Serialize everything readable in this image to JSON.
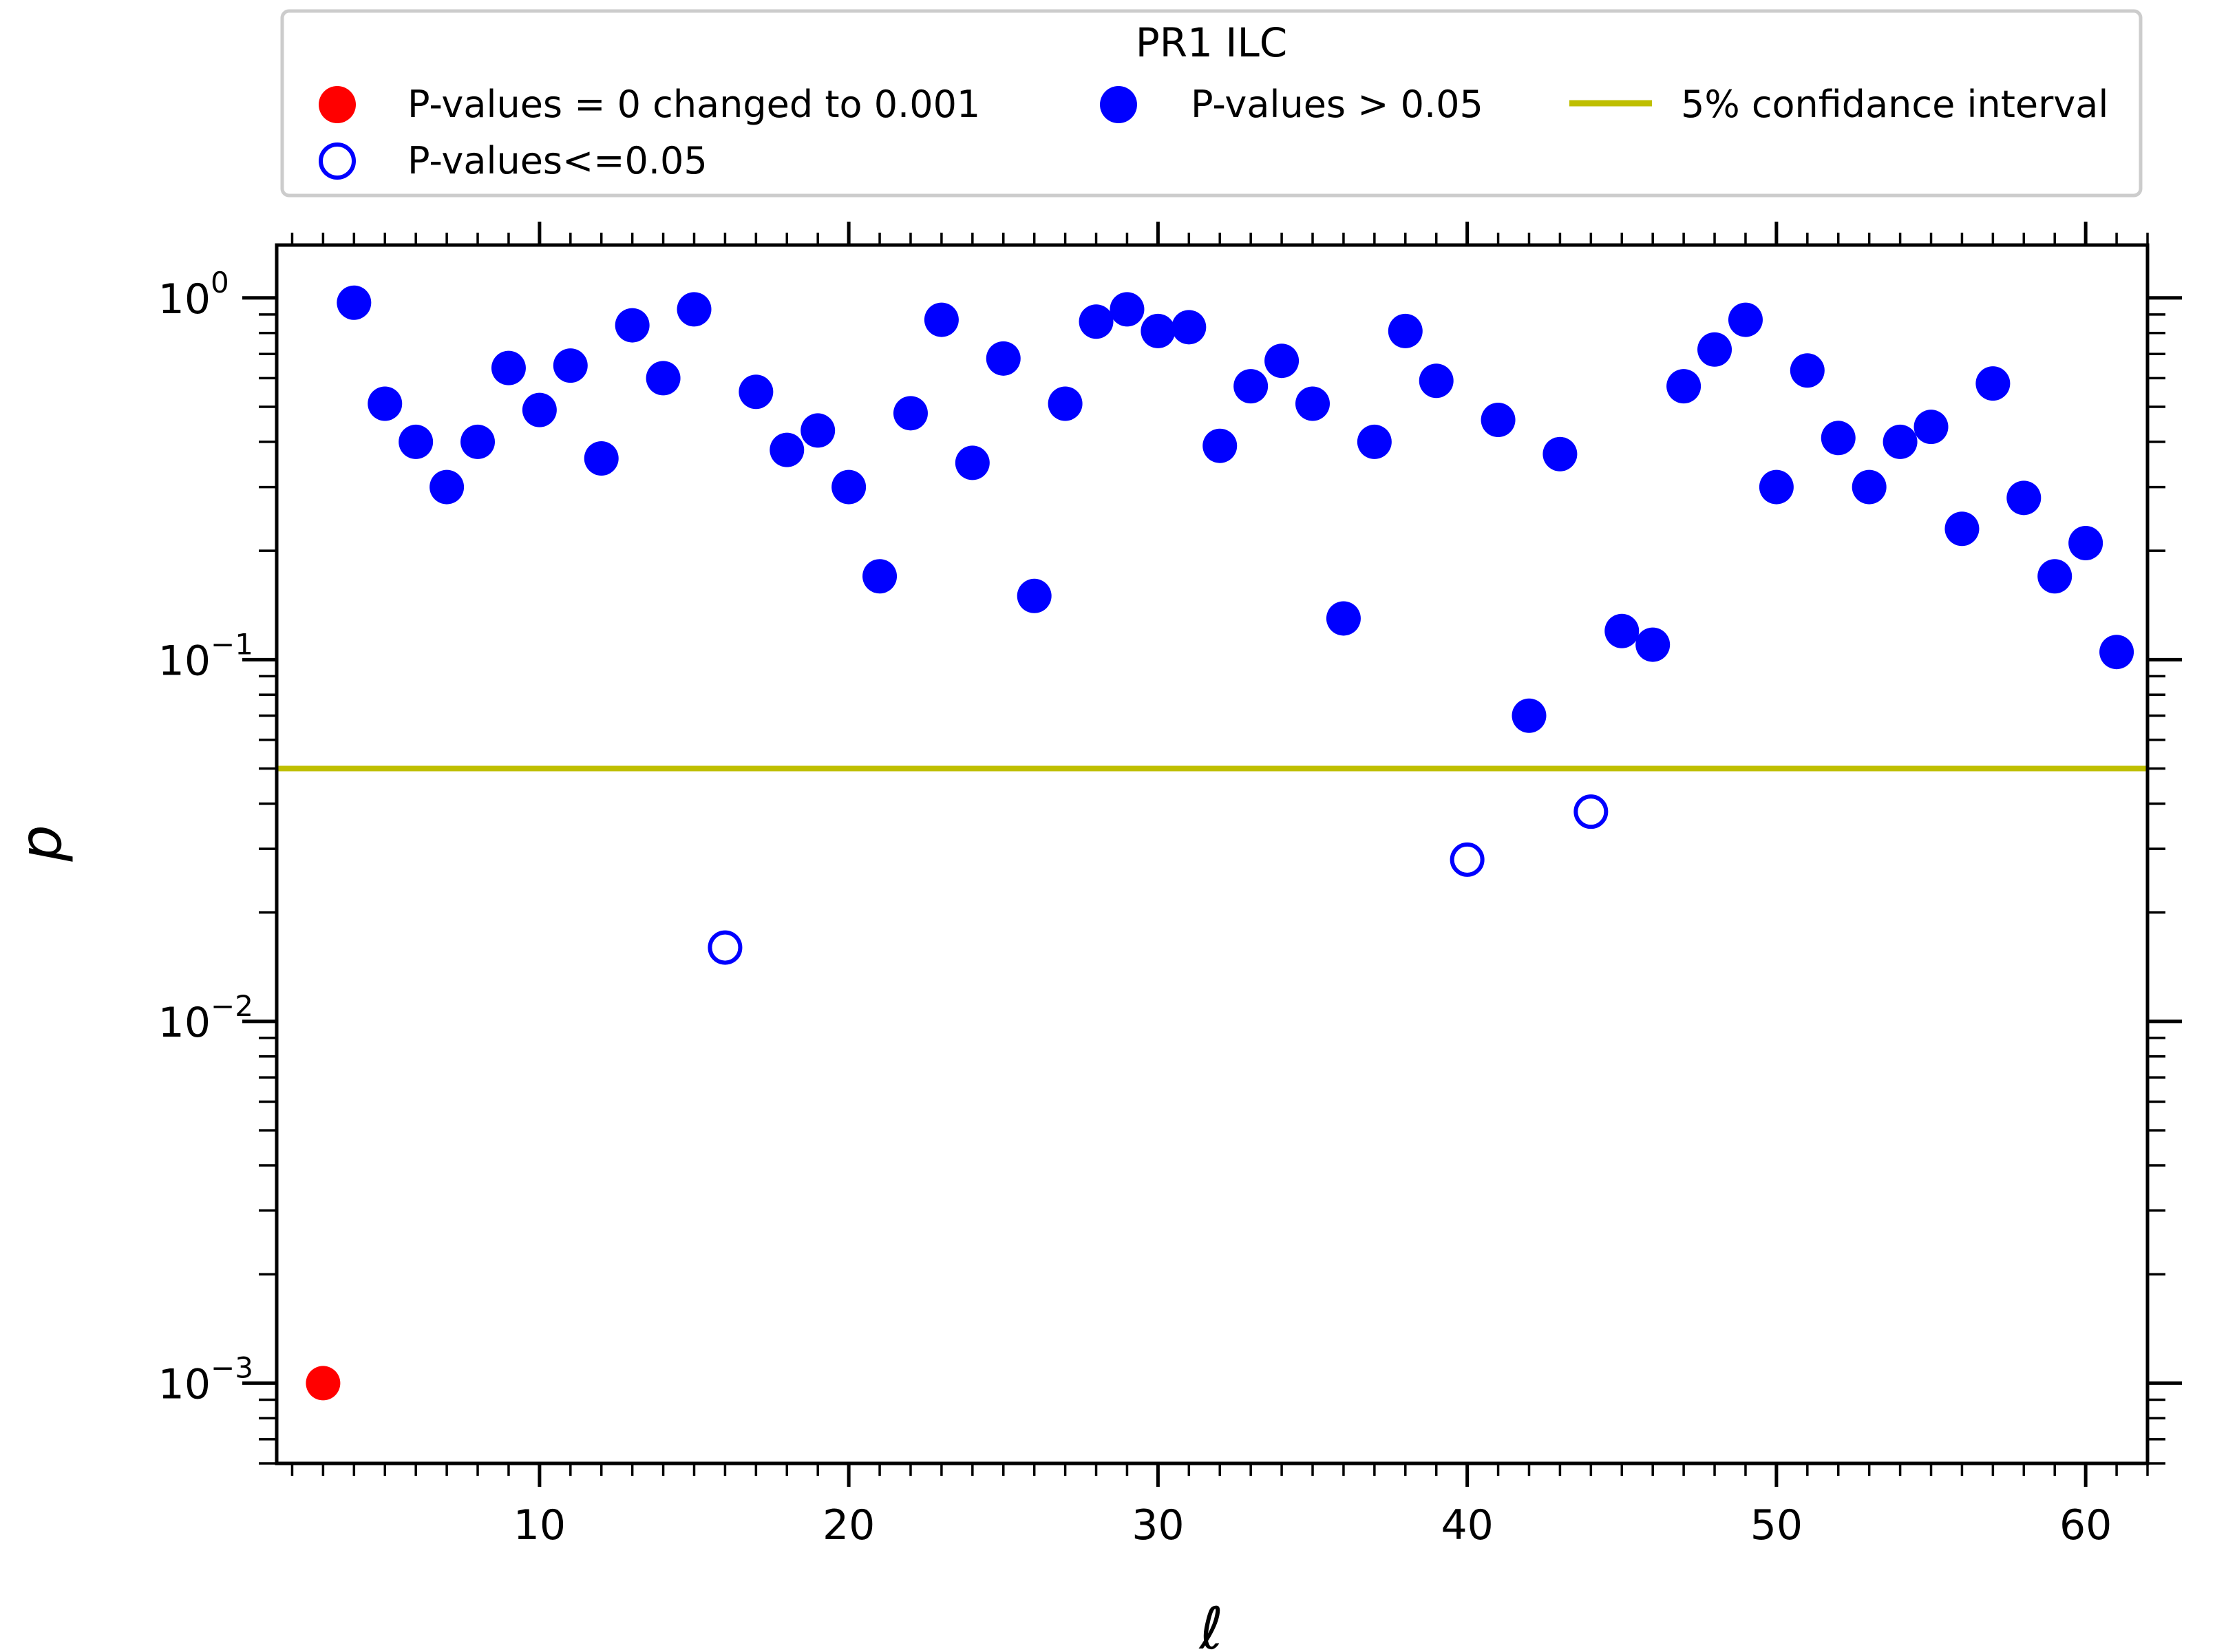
{
  "chart_data": {
    "type": "scatter",
    "title": "",
    "xlabel": "ℓ",
    "ylabel": "p",
    "xlim": [
      1.5,
      62
    ],
    "ylim": [
      0.0006,
      1.4
    ],
    "yscale": "log",
    "grid": false,
    "legend_placement": "top-center",
    "legend_title": "PR1 ILC",
    "x_ticks": [
      10,
      20,
      30,
      40,
      50,
      60
    ],
    "x_tick_labels": [
      "10",
      "20",
      "30",
      "40",
      "50",
      "60"
    ],
    "y_ticks": [
      0.001,
      0.01,
      0.1,
      1
    ],
    "y_tick_labels": [
      {
        "base": "10",
        "exp": "−3"
      },
      {
        "base": "10",
        "exp": "−2"
      },
      {
        "base": "10",
        "exp": "−1"
      },
      {
        "base": "10",
        "exp": "0"
      }
    ],
    "reference_line": {
      "name": "5% confidance interval",
      "y": 0.05,
      "color": "#bfbf00"
    },
    "series": [
      {
        "name": "P-values = 0 changed to 0.001",
        "marker": "filled-circle",
        "color": "#ff0000",
        "x": [
          3
        ],
        "y": [
          0.001
        ]
      },
      {
        "name": "P-values > 0.05",
        "marker": "filled-circle",
        "color": "#0000ff",
        "x": [
          4,
          5,
          6,
          7,
          8,
          9,
          10,
          11,
          12,
          13,
          14,
          15,
          17,
          18,
          19,
          20,
          21,
          22,
          23,
          24,
          25,
          26,
          27,
          28,
          29,
          30,
          31,
          32,
          33,
          34,
          35,
          36,
          37,
          38,
          39,
          41,
          42,
          43,
          45,
          46,
          47,
          48,
          49,
          50,
          51,
          52,
          53,
          54,
          55,
          56,
          57,
          58,
          59,
          60,
          61
        ],
        "y": [
          0.97,
          0.51,
          0.4,
          0.3,
          0.4,
          0.64,
          0.49,
          0.65,
          0.36,
          0.84,
          0.6,
          0.93,
          0.55,
          0.38,
          0.43,
          0.3,
          0.17,
          0.48,
          0.87,
          0.35,
          0.68,
          0.15,
          0.51,
          0.86,
          0.93,
          0.81,
          0.83,
          0.39,
          0.57,
          0.67,
          0.51,
          0.13,
          0.4,
          0.81,
          0.59,
          0.46,
          0.07,
          0.37,
          0.12,
          0.11,
          0.57,
          0.72,
          0.87,
          0.3,
          0.63,
          0.41,
          0.3,
          0.4,
          0.44,
          0.23,
          0.58,
          0.28,
          0.17,
          0.21,
          0.105
        ]
      },
      {
        "name": "P-values<=0.05",
        "marker": "hollow-circle",
        "color": "#0000ff",
        "x": [
          16,
          40,
          44
        ],
        "y": [
          0.016,
          0.028,
          0.038
        ]
      }
    ]
  }
}
